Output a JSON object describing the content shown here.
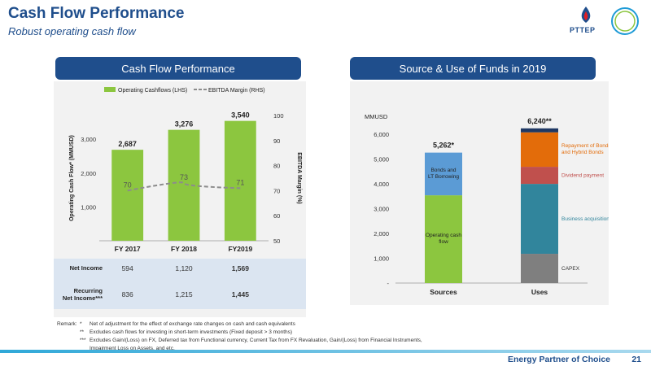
{
  "header": {
    "title": "Cash Flow Performance",
    "subtitle": "Robust operating cash flow",
    "logo_text": "PTTEP"
  },
  "left_panel": {
    "header": "Cash Flow Performance",
    "legend_bar": "Operating Cashflows (LHS)",
    "legend_line": "EBITDA Margin (RHS)",
    "y_left_label": "Operating Cash Flow* (MMUSD)",
    "y_right_label": "EBITDA Margin (%)",
    "table": {
      "rows": [
        {
          "label": "Net Income",
          "values": [
            "594",
            "1,120",
            "1,569"
          ]
        },
        {
          "label": "Recurring Net Income***",
          "values": [
            "836",
            "1,215",
            "1,445"
          ]
        }
      ]
    }
  },
  "right_panel": {
    "header": "Source & Use of Funds in  2019",
    "unit": "MMUSD"
  },
  "remarks": {
    "label": "Remark:",
    "items": [
      {
        "mark": "*",
        "text": "Net of adjustment for the effect of exchange rate changes on cash and cash equivalents"
      },
      {
        "mark": "**",
        "text": "Excludes cash flows for investing in short-term investments (Fixed deposit > 3 months)"
      },
      {
        "mark": "***",
        "text": "Excludes Gain/(Loss) on FX, Deferred tax from Functional currency, Current Tax from FX Revaluation, Gain/(Loss) from Financial Instruments,"
      },
      {
        "mark": "",
        "text": "Impairment Loss on Assets, and etc."
      }
    ]
  },
  "footer": {
    "tagline": "Energy Partner of Choice",
    "page": "21"
  },
  "colors": {
    "brand_blue": "#1f4e8c",
    "bar_green": "#8cc63f",
    "line_gray": "#8c8c8c",
    "panel_bg": "#f2f2f2",
    "table_bg": "#dbe5f1",
    "stack_blue": "#5b9bd5",
    "stack_teal": "#31859c",
    "stack_red": "#c0504d",
    "stack_orange": "#e36c0a",
    "stack_navy": "#1f3864",
    "stack_gray": "#7f7f7f"
  },
  "chart_data": [
    {
      "type": "bar",
      "categories": [
        "FY 2017",
        "FY 2018",
        "FY2019"
      ],
      "series": [
        {
          "name": "Operating Cashflows (LHS)",
          "axis": "left",
          "values": [
            2687,
            3276,
            3540
          ],
          "labels": [
            "2,687",
            "3,276",
            "3,540"
          ]
        },
        {
          "name": "EBITDA Margin (RHS)",
          "axis": "right",
          "type": "line",
          "values": [
            70,
            73,
            71
          ],
          "labels": [
            "70",
            "73",
            "71"
          ]
        }
      ],
      "y_left": {
        "ticks": [
          1000,
          2000,
          3000
        ],
        "tick_labels": [
          "1,000",
          "2,000",
          "3,000"
        ],
        "ylim": [
          0,
          3700
        ]
      },
      "y_right": {
        "ticks": [
          50,
          60,
          70,
          80,
          90,
          100
        ],
        "tick_labels": [
          "50",
          "60",
          "70",
          "80",
          "90",
          "100"
        ],
        "ylim": [
          50,
          100
        ]
      },
      "xlabel": "",
      "ylabel": "Operating Cash Flow* (MMUSD)",
      "ylabel_right": "EBITDA Margin (%)",
      "legend": "top"
    },
    {
      "type": "bar",
      "stacked": true,
      "categories": [
        "Sources",
        "Uses"
      ],
      "ylim": [
        0,
        6300
      ],
      "y_ticks": [
        0,
        1000,
        2000,
        3000,
        4000,
        5000,
        6000
      ],
      "y_tick_labels": [
        "-",
        "1,000",
        "2,000",
        "3,000",
        "4,000",
        "5,000",
        "6,000"
      ],
      "totals": [
        {
          "value": 5262,
          "label": "5,262*"
        },
        {
          "value": 6240,
          "label": "6,240**"
        }
      ],
      "stacks": [
        {
          "category": "Sources",
          "segments": [
            {
              "name": "Operating cash flow",
              "value": 3540,
              "color": "#8cc63f"
            },
            {
              "name": "Bonds and LT Borrowing",
              "value": 1722,
              "color": "#5b9bd5"
            }
          ]
        },
        {
          "category": "Uses",
          "segments": [
            {
              "name": "CAPEX",
              "value": 1180,
              "color": "#7f7f7f"
            },
            {
              "name": "Business acquisitions",
              "value": 2820,
              "color": "#31859c"
            },
            {
              "name": "Dividend payment",
              "value": 690,
              "color": "#c0504d"
            },
            {
              "name": "Repayment of Bonds and Hybrid Bonds",
              "value": 1390,
              "color": "#e36c0a"
            },
            {
              "name": "",
              "value": 160,
              "color": "#1f3864"
            }
          ]
        }
      ],
      "ylabel": "MMUSD"
    }
  ]
}
